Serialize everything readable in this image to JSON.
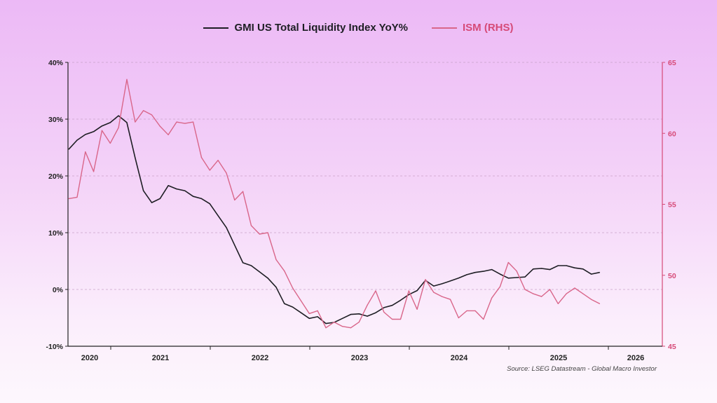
{
  "chart_data": {
    "type": "line",
    "title": "",
    "colors": {
      "gmi": "#1e1e24",
      "ism": "#d9668a",
      "ism_axis": "#d64a78"
    },
    "y_left": {
      "ticks": [
        "-10%",
        "0%",
        "10%",
        "20%",
        "30%",
        "40%"
      ],
      "range": [
        -10,
        40
      ],
      "unit": "%"
    },
    "y_right": {
      "ticks": [
        "45",
        "50",
        "55",
        "60",
        "65"
      ],
      "range": [
        45,
        65
      ]
    },
    "x_ticks": [
      "2020",
      "2021",
      "2022",
      "2023",
      "2024",
      "2025",
      "2026"
    ],
    "grid": "horizontal dashed",
    "legend_placement": "top-center",
    "x": [
      "2020-08",
      "2020-09",
      "2020-10",
      "2020-11",
      "2020-12",
      "2021-01",
      "2021-02",
      "2021-03",
      "2021-04",
      "2021-05",
      "2021-06",
      "2021-07",
      "2021-08",
      "2021-09",
      "2021-10",
      "2021-11",
      "2021-12",
      "2022-01",
      "2022-02",
      "2022-03",
      "2022-04",
      "2022-05",
      "2022-06",
      "2022-07",
      "2022-08",
      "2022-09",
      "2022-10",
      "2022-11",
      "2022-12",
      "2023-01",
      "2023-02",
      "2023-03",
      "2023-04",
      "2023-05",
      "2023-06",
      "2023-07",
      "2023-08",
      "2023-09",
      "2023-10",
      "2023-11",
      "2023-12",
      "2024-01",
      "2024-02",
      "2024-03",
      "2024-04",
      "2024-05",
      "2024-06",
      "2024-07",
      "2024-08",
      "2024-09",
      "2024-10",
      "2024-11",
      "2024-12",
      "2025-01",
      "2025-02",
      "2025-03",
      "2025-04",
      "2025-05",
      "2025-06",
      "2025-07",
      "2025-08",
      "2025-09",
      "2025-10",
      "2025-11",
      "2025-12"
    ],
    "series": [
      {
        "name": "GMI US Total Liquidity Index YoY%",
        "axis": "left",
        "values": [
          24.7,
          26.3,
          27.3,
          27.8,
          28.8,
          29.4,
          30.6,
          29.4,
          23.2,
          17.4,
          15.3,
          16.0,
          18.3,
          17.7,
          17.4,
          16.4,
          16.0,
          15.1,
          13.0,
          10.9,
          7.8,
          4.7,
          4.2,
          3.1,
          2.0,
          0.4,
          -2.5,
          -3.1,
          -4.1,
          -5.1,
          -4.8,
          -6.0,
          -5.8,
          -5.1,
          -4.4,
          -4.3,
          -4.7,
          -4.1,
          -3.2,
          -2.8,
          -1.9,
          -0.9,
          -0.2,
          1.6,
          0.6,
          1.0,
          1.5,
          2.0,
          2.6,
          3.0,
          3.2,
          3.5,
          2.7,
          2.0,
          2.1,
          2.2,
          3.6,
          3.7,
          3.5,
          4.2,
          4.2,
          3.8,
          3.6,
          2.7,
          3.0
        ]
      },
      {
        "name": "ISM (RHS)",
        "axis": "right",
        "values": [
          55.4,
          55.5,
          58.7,
          57.3,
          60.2,
          59.3,
          60.4,
          63.8,
          60.8,
          61.6,
          61.3,
          60.5,
          59.9,
          60.8,
          60.7,
          60.8,
          58.3,
          57.4,
          58.1,
          57.2,
          55.3,
          55.9,
          53.5,
          52.9,
          53.0,
          51.1,
          50.3,
          49.1,
          48.2,
          47.3,
          47.5,
          46.3,
          46.7,
          46.4,
          46.3,
          46.7,
          47.9,
          48.9,
          47.4,
          46.9,
          46.9,
          48.9,
          47.6,
          49.7,
          48.8,
          48.5,
          48.3,
          47.0,
          47.5,
          47.5,
          46.9,
          48.4,
          49.2,
          50.9,
          50.3,
          49.0,
          48.7,
          48.5,
          49.0,
          48.0,
          48.7,
          49.1,
          48.7,
          48.3,
          48.0
        ]
      }
    ],
    "source": "Source: LSEG Datastream - Global Macro Investor"
  }
}
